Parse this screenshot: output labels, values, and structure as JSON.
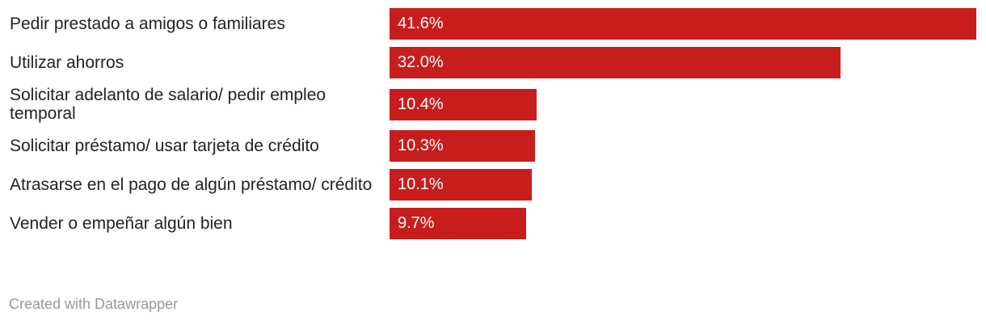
{
  "chart_data": {
    "type": "bar",
    "categories": [
      "Pedir prestado a amigos o familiares",
      "Utilizar ahorros",
      "Solicitar adelanto de salario/ pedir empleo temporal",
      "Solicitar préstamo/ usar tarjeta de crédito",
      "Atrasarse en el pago de algún préstamo/ crédito",
      "Vender o empeñar algún bien"
    ],
    "values": [
      41.6,
      32.0,
      10.4,
      10.3,
      10.1,
      9.7
    ],
    "value_labels": [
      "41.6%",
      "32.0%",
      "10.4%",
      "10.3%",
      "10.1%",
      "9.7%"
    ],
    "color": "#c71e1d",
    "footer": "Created with Datawrapper"
  }
}
